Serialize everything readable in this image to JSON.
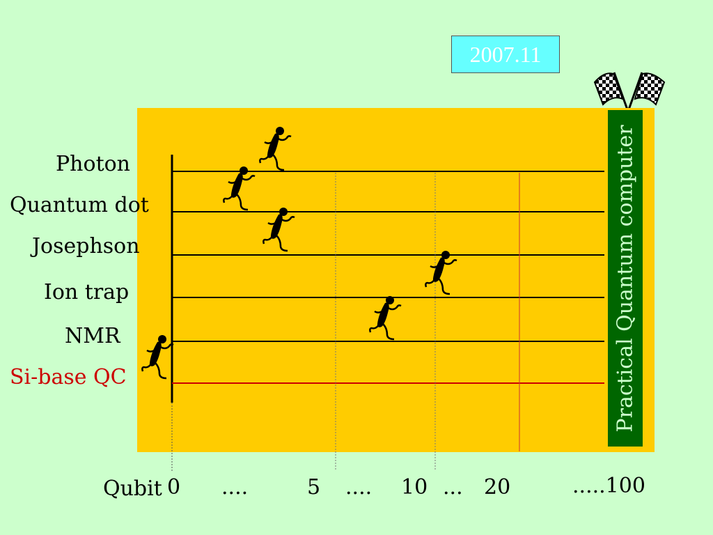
{
  "date_label": "2007.11",
  "goal_label": "Practical Quantum computer",
  "icons": {
    "flag": "checkered-flags-icon",
    "runner": "runner-icon"
  },
  "colors": {
    "background": "#ccffcc",
    "track": "#ffcc00",
    "goal": "#006600",
    "date_box": "#66ffff",
    "si_lane": "#cc0000"
  },
  "lanes": [
    {
      "label": "Photon"
    },
    {
      "label": "Quantum dot"
    },
    {
      "label": "Josephson"
    },
    {
      "label": "Ion trap"
    },
    {
      "label": "NMR"
    },
    {
      "label": "Si-base QC"
    }
  ],
  "axis": {
    "name": "Qubit",
    "ticks": [
      "0",
      "....",
      "5",
      "....",
      "10",
      "...",
      "20",
      ".....100"
    ]
  }
}
